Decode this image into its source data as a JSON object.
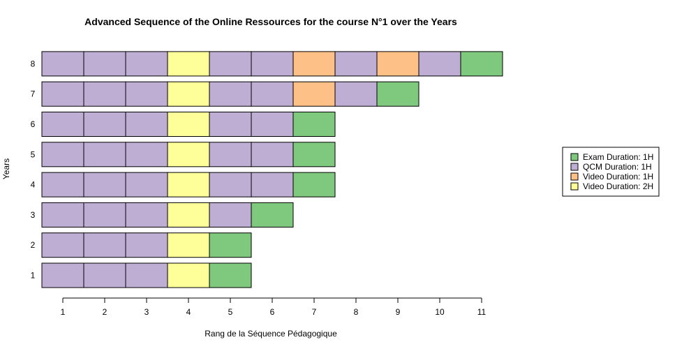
{
  "chart_data": {
    "type": "bar",
    "orientation": "horizontal-stacked-sequence",
    "title": "Advanced Sequence of the Online Ressources for the course N°1 over the Years",
    "xlabel": "Rang de la Séquence Pédagogique",
    "ylabel": "Years",
    "x_ticks": [
      "1",
      "2",
      "3",
      "4",
      "5",
      "6",
      "7",
      "8",
      "9",
      "10",
      "11"
    ],
    "y_ticks": [
      "1",
      "2",
      "3",
      "4",
      "5",
      "6",
      "7",
      "8"
    ],
    "xlim": [
      0.5,
      11.5
    ],
    "grid": false,
    "legend_position": "right",
    "legend": [
      {
        "key": "exam1h",
        "label": "Exam Duration: 1H",
        "color": "#7fc97f"
      },
      {
        "key": "qcm1h",
        "label": "QCM Duration: 1H",
        "color": "#beaed4"
      },
      {
        "key": "video1h",
        "label": "Video Duration: 1H",
        "color": "#fdc086"
      },
      {
        "key": "video2h",
        "label": "Video Duration: 2H",
        "color": "#ffff99"
      }
    ],
    "series": [
      {
        "year": "1",
        "sequence": [
          "qcm1h",
          "qcm1h",
          "qcm1h",
          "video2h",
          "exam1h"
        ]
      },
      {
        "year": "2",
        "sequence": [
          "qcm1h",
          "qcm1h",
          "qcm1h",
          "video2h",
          "exam1h"
        ]
      },
      {
        "year": "3",
        "sequence": [
          "qcm1h",
          "qcm1h",
          "qcm1h",
          "video2h",
          "qcm1h",
          "exam1h"
        ]
      },
      {
        "year": "4",
        "sequence": [
          "qcm1h",
          "qcm1h",
          "qcm1h",
          "video2h",
          "qcm1h",
          "qcm1h",
          "exam1h"
        ]
      },
      {
        "year": "5",
        "sequence": [
          "qcm1h",
          "qcm1h",
          "qcm1h",
          "video2h",
          "qcm1h",
          "qcm1h",
          "exam1h"
        ]
      },
      {
        "year": "6",
        "sequence": [
          "qcm1h",
          "qcm1h",
          "qcm1h",
          "video2h",
          "qcm1h",
          "qcm1h",
          "exam1h"
        ]
      },
      {
        "year": "7",
        "sequence": [
          "qcm1h",
          "qcm1h",
          "qcm1h",
          "video2h",
          "qcm1h",
          "qcm1h",
          "video1h",
          "qcm1h",
          "exam1h"
        ]
      },
      {
        "year": "8",
        "sequence": [
          "qcm1h",
          "qcm1h",
          "qcm1h",
          "video2h",
          "qcm1h",
          "qcm1h",
          "video1h",
          "qcm1h",
          "video1h",
          "qcm1h",
          "exam1h"
        ]
      }
    ]
  }
}
